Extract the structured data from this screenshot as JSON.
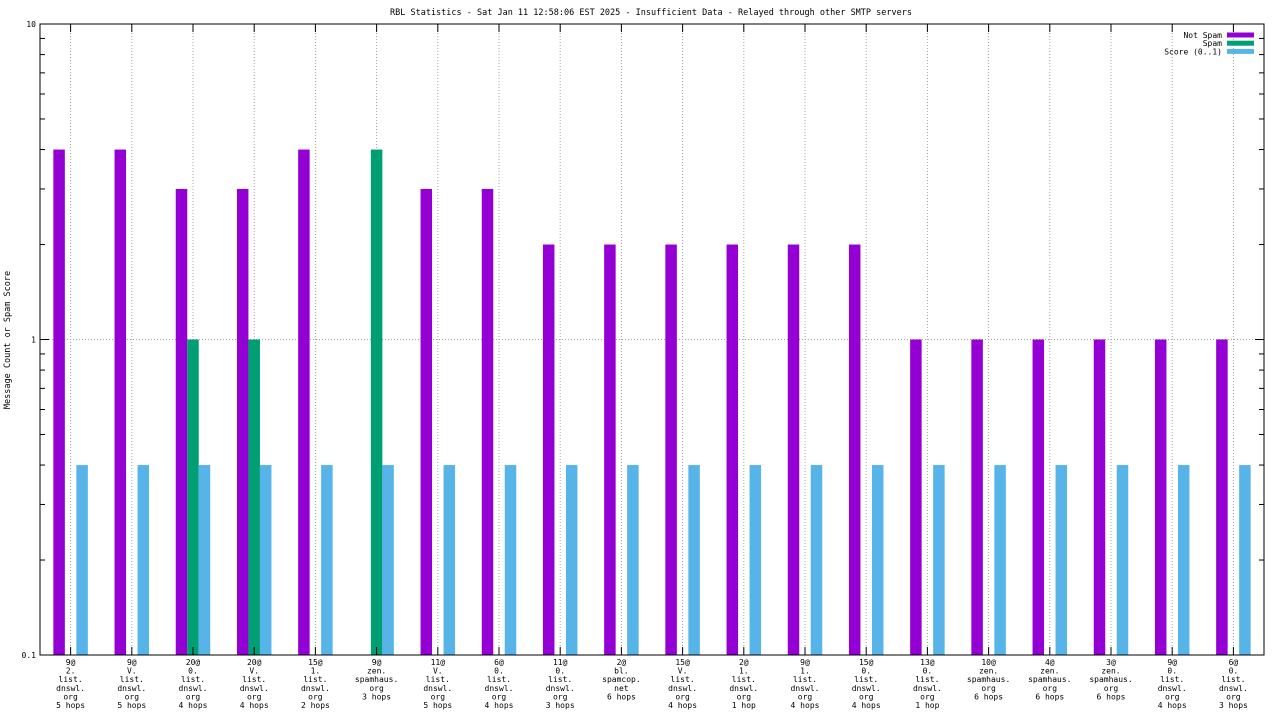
{
  "chart_data": {
    "type": "bar",
    "title": "RBL Statistics - Sat Jan 11 12:58:06 EST 2025 - Insufficient Data - Relayed through other SMTP servers",
    "xlabel": "",
    "ylabel": "Message Count or Spam Score",
    "yscale": "log",
    "ylim": [
      0.1,
      10
    ],
    "ytick_labels": [
      "0.1",
      "1",
      "10"
    ],
    "grid": true,
    "legend_position": "top-right",
    "categories": [
      [
        "9@",
        "2.",
        "list.",
        "dnswl.",
        "org",
        "5 hops"
      ],
      [
        "9@",
        "V.",
        "list.",
        "dnswl.",
        "org",
        "5 hops"
      ],
      [
        "20@",
        "0.",
        "list.",
        "dnswl.",
        "org",
        "4 hops"
      ],
      [
        "20@",
        "V.",
        "list.",
        "dnswl.",
        "org",
        "4 hops"
      ],
      [
        "15@",
        "1.",
        "list.",
        "dnswl.",
        "org",
        "2 hops"
      ],
      [
        "9@",
        "zen.",
        "spamhaus.",
        "org",
        "3 hops"
      ],
      [
        "11@",
        "V.",
        "list.",
        "dnswl.",
        "org",
        "5 hops"
      ],
      [
        "6@",
        "0.",
        "list.",
        "dnswl.",
        "org",
        "4 hops"
      ],
      [
        "11@",
        "0.",
        "list.",
        "dnswl.",
        "org",
        "3 hops"
      ],
      [
        "2@",
        "bl.",
        "spamcop.",
        "net",
        "6 hops"
      ],
      [
        "15@",
        "V.",
        "list.",
        "dnswl.",
        "org",
        "4 hops"
      ],
      [
        "2@",
        "1.",
        "list.",
        "dnswl.",
        "org",
        "1 hop"
      ],
      [
        "9@",
        "1.",
        "list.",
        "dnswl.",
        "org",
        "4 hops"
      ],
      [
        "15@",
        "0.",
        "list.",
        "dnswl.",
        "org",
        "4 hops"
      ],
      [
        "13@",
        "0.",
        "list.",
        "dnswl.",
        "org",
        "1 hop"
      ],
      [
        "10@",
        "zen.",
        "spamhaus.",
        "org",
        "6 hops"
      ],
      [
        "4@",
        "zen.",
        "spamhaus.",
        "org",
        "6 hops"
      ],
      [
        "3@",
        "zen.",
        "spamhaus.",
        "org",
        "6 hops"
      ],
      [
        "9@",
        "0.",
        "list.",
        "dnswl.",
        "org",
        "4 hops"
      ],
      [
        "6@",
        "0.",
        "list.",
        "dnswl.",
        "org",
        "3 hops"
      ]
    ],
    "series": [
      {
        "name": "Not Spam",
        "color": "#9400d3",
        "values": [
          4,
          4,
          3,
          3,
          4,
          0,
          3,
          3,
          2,
          2,
          2,
          2,
          2,
          2,
          1,
          1,
          1,
          1,
          1,
          1
        ]
      },
      {
        "name": "Spam",
        "color": "#009e73",
        "values": [
          0,
          0,
          1,
          1,
          0,
          4,
          0,
          0,
          0,
          0,
          0,
          0,
          0,
          0,
          0,
          0,
          0,
          0,
          0,
          0
        ]
      },
      {
        "name": "Score (0..1)",
        "color": "#56b4e9",
        "values": [
          0.4,
          0.4,
          0.4,
          0.4,
          0.4,
          0.4,
          0.4,
          0.4,
          0.4,
          0.4,
          0.4,
          0.4,
          0.4,
          0.4,
          0.4,
          0.4,
          0.4,
          0.4,
          0.4,
          0.4
        ]
      }
    ]
  }
}
